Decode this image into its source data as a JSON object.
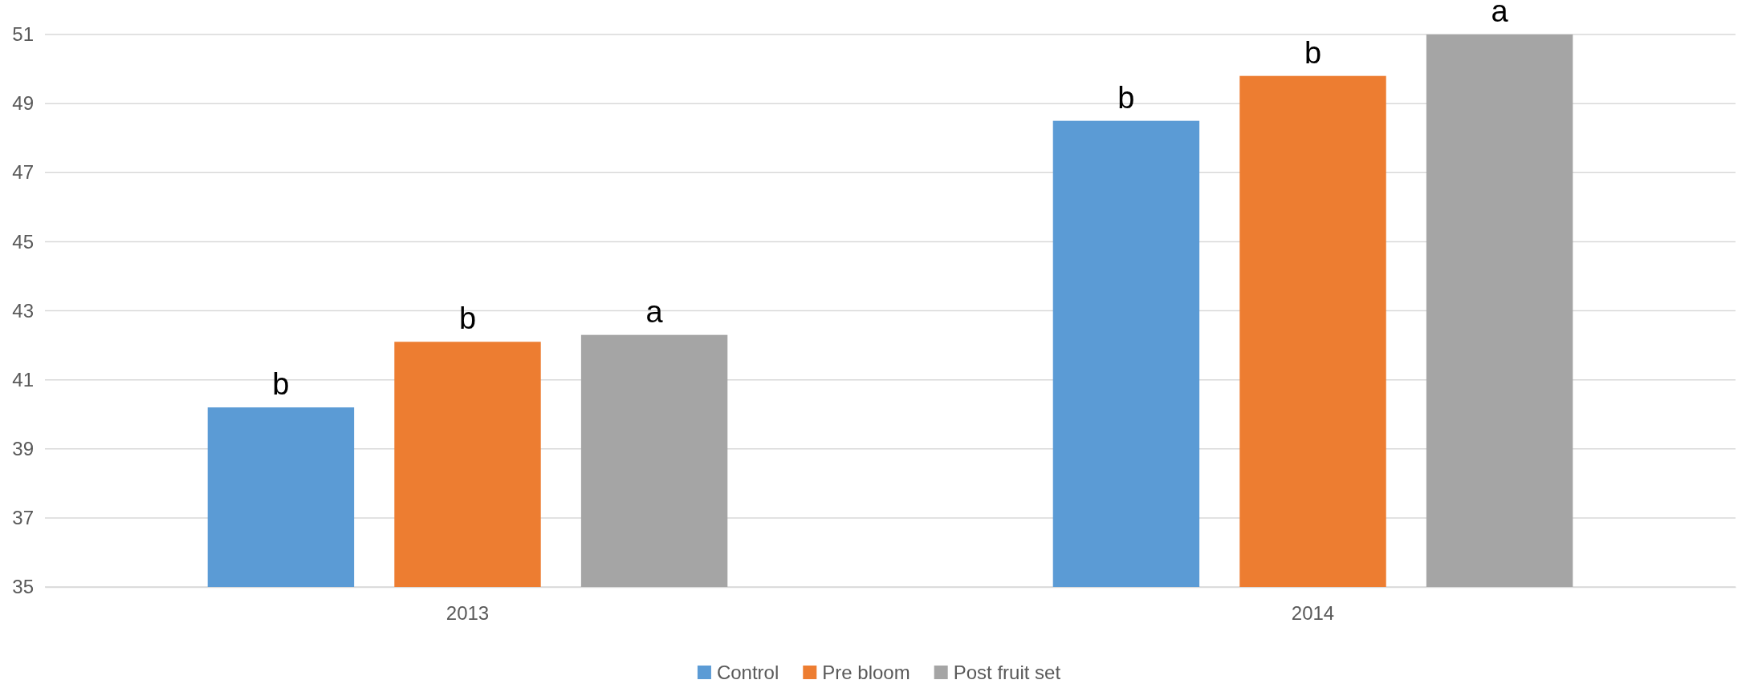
{
  "chart_data": {
    "type": "bar",
    "categories": [
      "2013",
      "2014"
    ],
    "series": [
      {
        "name": "Control",
        "color": "#5b9bd5",
        "values": [
          40.2,
          48.5
        ],
        "value_labels": [
          "b",
          "b"
        ]
      },
      {
        "name": "Pre bloom",
        "color": "#ed7d31",
        "values": [
          42.1,
          49.8
        ],
        "value_labels": [
          "b",
          "b"
        ]
      },
      {
        "name": "Post fruit set",
        "color": "#a5a5a5",
        "values": [
          42.3,
          51
        ],
        "value_labels": [
          "a",
          "a"
        ]
      }
    ],
    "ylim": [
      35,
      51
    ],
    "yticks": [
      35,
      37,
      39,
      41,
      43,
      45,
      47,
      49,
      51
    ],
    "grid": "y",
    "legend": "bottom"
  }
}
